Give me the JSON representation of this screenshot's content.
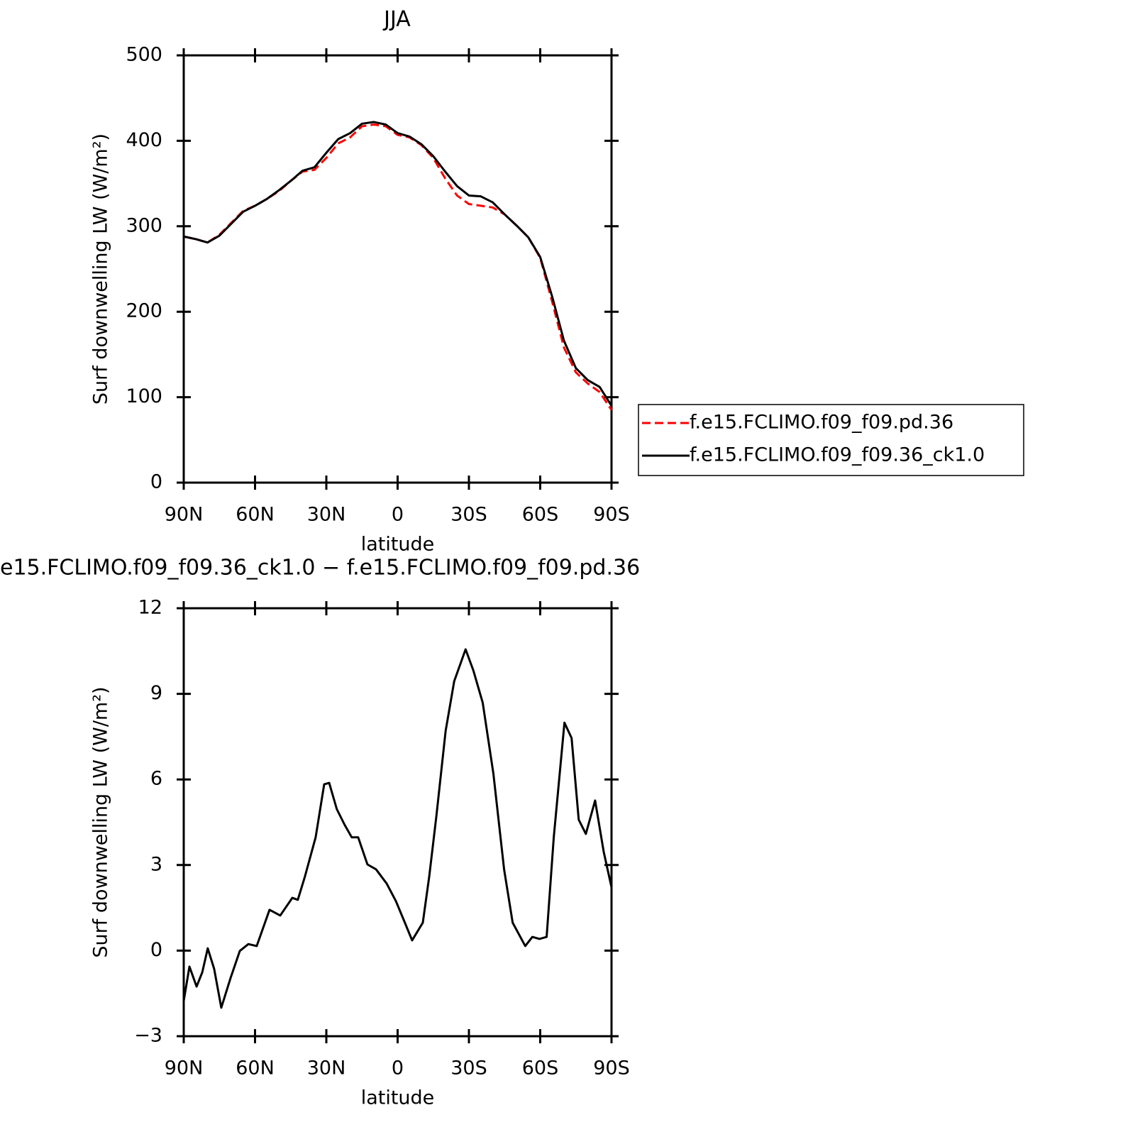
{
  "chart_data": [
    {
      "type": "line",
      "title": "JJA",
      "x_label": "latitude",
      "y_label": "Surf downwelling LW (W/m²)",
      "x": [
        90,
        85,
        80,
        75,
        70,
        65,
        60,
        55,
        50,
        45,
        40,
        35,
        30,
        25,
        20,
        15,
        10,
        5,
        0,
        -5,
        -10,
        -15,
        -20,
        -25,
        -30,
        -35,
        -40,
        -45,
        -50,
        -55,
        -60,
        -65,
        -70,
        -75,
        -80,
        -85,
        -90
      ],
      "series": [
        {
          "name": "f.e15.FCLIMO.f09_f09.pd.36",
          "color": "#ff0000",
          "line_style": "dashed",
          "values": [
            288,
            285,
            281,
            290,
            304,
            318,
            324,
            332,
            341,
            353,
            364,
            366,
            380,
            397,
            404,
            417,
            419,
            417,
            407,
            404,
            395,
            380,
            356,
            336,
            326,
            324,
            322,
            314,
            301,
            287,
            263,
            212,
            158,
            129,
            116,
            106,
            85
          ]
        },
        {
          "name": "f.e15.FCLIMO.f09_f09.36_ck1.0",
          "color": "#000000",
          "line_style": "solid",
          "values": [
            288,
            285,
            281,
            289,
            303,
            317,
            324,
            332,
            342,
            353,
            365,
            369,
            386,
            402,
            409,
            420,
            422,
            419,
            409,
            405,
            396,
            382,
            364,
            347,
            336,
            335,
            328,
            314,
            301,
            287,
            264,
            218,
            166,
            134,
            120,
            112,
            90
          ]
        }
      ],
      "xlim": [
        90,
        -90
      ],
      "xticks": [
        {
          "value": 90,
          "label": "90N"
        },
        {
          "value": 60,
          "label": "60N"
        },
        {
          "value": 30,
          "label": "30N"
        },
        0,
        {
          "value": -30,
          "label": "30S"
        },
        {
          "value": -60,
          "label": "60S"
        },
        {
          "value": -90,
          "label": "90S"
        }
      ],
      "ylim": [
        0,
        500
      ],
      "yticks": [
        0,
        100,
        200,
        300,
        400,
        500
      ],
      "legend": "right"
    },
    {
      "type": "line",
      "title": "e15.FCLIMO.f09_f09.36_ck1.0 − f.e15.FCLIMO.f09_f09.pd.36",
      "x_label": "latitude",
      "y_label": "Surf downwelling LW (W/m²)",
      "x": [
        90,
        87.6,
        84.6,
        82.2,
        79.9,
        77.2,
        74.2,
        70.3,
        66.4,
        62.8,
        59.3,
        53.9,
        49.4,
        44.3,
        42.0,
        39.0,
        34.5,
        30.9,
        28.8,
        25.6,
        22.3,
        19.3,
        16.6,
        12.7,
        9.1,
        4.6,
        0.7,
        -2.8,
        -6.1,
        -10.6,
        -13.3,
        -16.3,
        -20.2,
        -23.8,
        -28.6,
        -31.9,
        -35.8,
        -40.3,
        -44.8,
        -48.4,
        -53.7,
        -56.7,
        -59.7,
        -62.7,
        -65.7,
        -70.2,
        -73.2,
        -76.2,
        -79.2,
        -83.1,
        -86.7,
        -90
      ],
      "values": [
        -1.76,
        -0.56,
        -1.26,
        -0.76,
        0.08,
        -0.64,
        -2.0,
        -0.96,
        -0.01,
        0.23,
        0.16,
        1.43,
        1.23,
        1.85,
        1.78,
        2.6,
        3.97,
        5.83,
        5.88,
        4.96,
        4.41,
        3.97,
        3.97,
        3.02,
        2.85,
        2.35,
        1.73,
        1.03,
        0.36,
        0.98,
        2.6,
        4.71,
        7.7,
        9.44,
        10.56,
        9.81,
        8.69,
        6.2,
        2.85,
        0.98,
        0.16,
        0.48,
        0.41,
        0.48,
        3.97,
        7.99,
        7.45,
        4.59,
        4.09,
        5.26,
        3.47,
        2.22
      ],
      "color": "#000000",
      "xlim": [
        90,
        -90
      ],
      "xticks": [
        {
          "value": 90,
          "label": "90N"
        },
        {
          "value": 60,
          "label": "60N"
        },
        {
          "value": 30,
          "label": "30N"
        },
        0,
        {
          "value": -30,
          "label": "30S"
        },
        {
          "value": -60,
          "label": "60S"
        },
        {
          "value": -90,
          "label": "90S"
        }
      ],
      "ylim": [
        -3,
        12
      ],
      "yticks": [
        {
          "value": -3,
          "label": "−3"
        },
        0,
        3,
        6,
        9,
        12
      ]
    }
  ]
}
